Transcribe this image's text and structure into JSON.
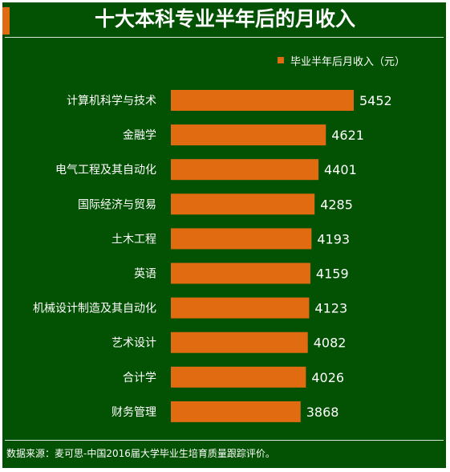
{
  "title": "十大本科专业半年后的月收入",
  "source": "数据来源：麦可思-中国2016届大学毕业生培育质量跟踪评价。",
  "colors": {
    "background": "#035203",
    "bar": "#e06b10",
    "text": "#ffffff"
  },
  "chart_data": {
    "type": "bar",
    "orientation": "horizontal",
    "legend_position": "top-right",
    "grid": false,
    "categories": [
      "计算机科学与技术",
      "金融学",
      "电气工程及其自动化",
      "国际经济与贸易",
      "土木工程",
      "英语",
      "机械设计制造及其自动化",
      "艺术设计",
      "合计学",
      "财务管理"
    ],
    "series": [
      {
        "name": "毕业半年后月收入（元）",
        "values": [
          5452,
          4621,
          4401,
          4285,
          4193,
          4159,
          4123,
          4082,
          4026,
          3868
        ]
      }
    ],
    "xlim": [
      0,
      5452
    ]
  }
}
